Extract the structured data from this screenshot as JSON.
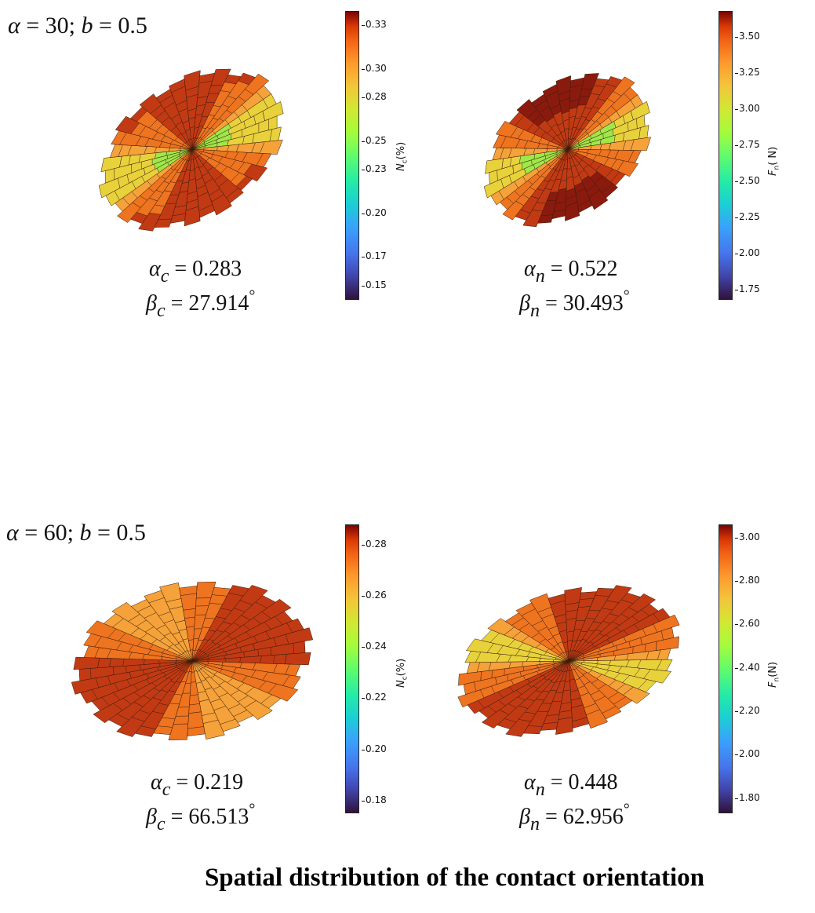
{
  "panels": [
    {
      "label_alpha_symbol": "α",
      "label_text": "= 30; ",
      "label_b_symbol": "b",
      "label_b_value": "= 0.5",
      "left": {
        "stat1_symbol": "α",
        "stat1_sub": "c",
        "stat1_value": "= 0.283",
        "stat2_symbol": "β",
        "stat2_sub": "c",
        "stat2_value": "= 27.914",
        "degree": "°",
        "colorbar_title_symbol": "N",
        "colorbar_title_sub": "c",
        "colorbar_title_rest": "(%)",
        "ticks": [
          "0.33",
          "0.30",
          "0.28",
          "0.25",
          "0.23",
          "0.20",
          "0.17",
          "0.15"
        ],
        "range": [
          0.14,
          0.34
        ]
      },
      "right": {
        "stat1_symbol": "α",
        "stat1_sub": "n",
        "stat1_value": "= 0.522",
        "stat2_symbol": "β",
        "stat2_sub": "n",
        "stat2_value": "= 30.493",
        "degree": "°",
        "colorbar_title_symbol": "F",
        "colorbar_title_sub": "n",
        "colorbar_title_rest": "( N)",
        "ticks": [
          "3.50",
          "3.25",
          "3.00",
          "2.75",
          "2.50",
          "2.25",
          "2.00",
          "1.75"
        ],
        "range": [
          1.68,
          3.68
        ]
      }
    },
    {
      "label_alpha_symbol": "α",
      "label_text": "= 60; ",
      "label_b_symbol": "b",
      "label_b_value": "= 0.5",
      "left": {
        "stat1_symbol": "α",
        "stat1_sub": "c",
        "stat1_value": "= 0.219",
        "stat2_symbol": "β",
        "stat2_sub": "c",
        "stat2_value": "= 66.513",
        "degree": "°",
        "colorbar_title_symbol": "N",
        "colorbar_title_sub": "c",
        "colorbar_title_rest": "(%)",
        "ticks": [
          "0.28",
          "0.26",
          "0.24",
          "0.22",
          "0.20",
          "0.18"
        ],
        "range": [
          0.175,
          0.288
        ]
      },
      "right": {
        "stat1_symbol": "α",
        "stat1_sub": "n",
        "stat1_value": "= 0.448",
        "stat2_symbol": "β",
        "stat2_sub": "n",
        "stat2_value": "= 62.956",
        "degree": "°",
        "colorbar_title_symbol": "F",
        "colorbar_title_sub": "n",
        "colorbar_title_rest": "(N)",
        "ticks": [
          "3.00",
          "2.80",
          "2.60",
          "2.40",
          "2.20",
          "2.00",
          "1.80"
        ],
        "range": [
          1.73,
          3.06
        ]
      }
    }
  ],
  "footer": "Spatial distribution of the contact orientation",
  "colors": {
    "dark_red": "#8b1a0e",
    "red": "#c23a14",
    "orange": "#ee7420",
    "light_orange": "#f5a23a",
    "yellow": "#e8d23c",
    "green": "#9ee84a",
    "edge": "#3a1a0a"
  }
}
